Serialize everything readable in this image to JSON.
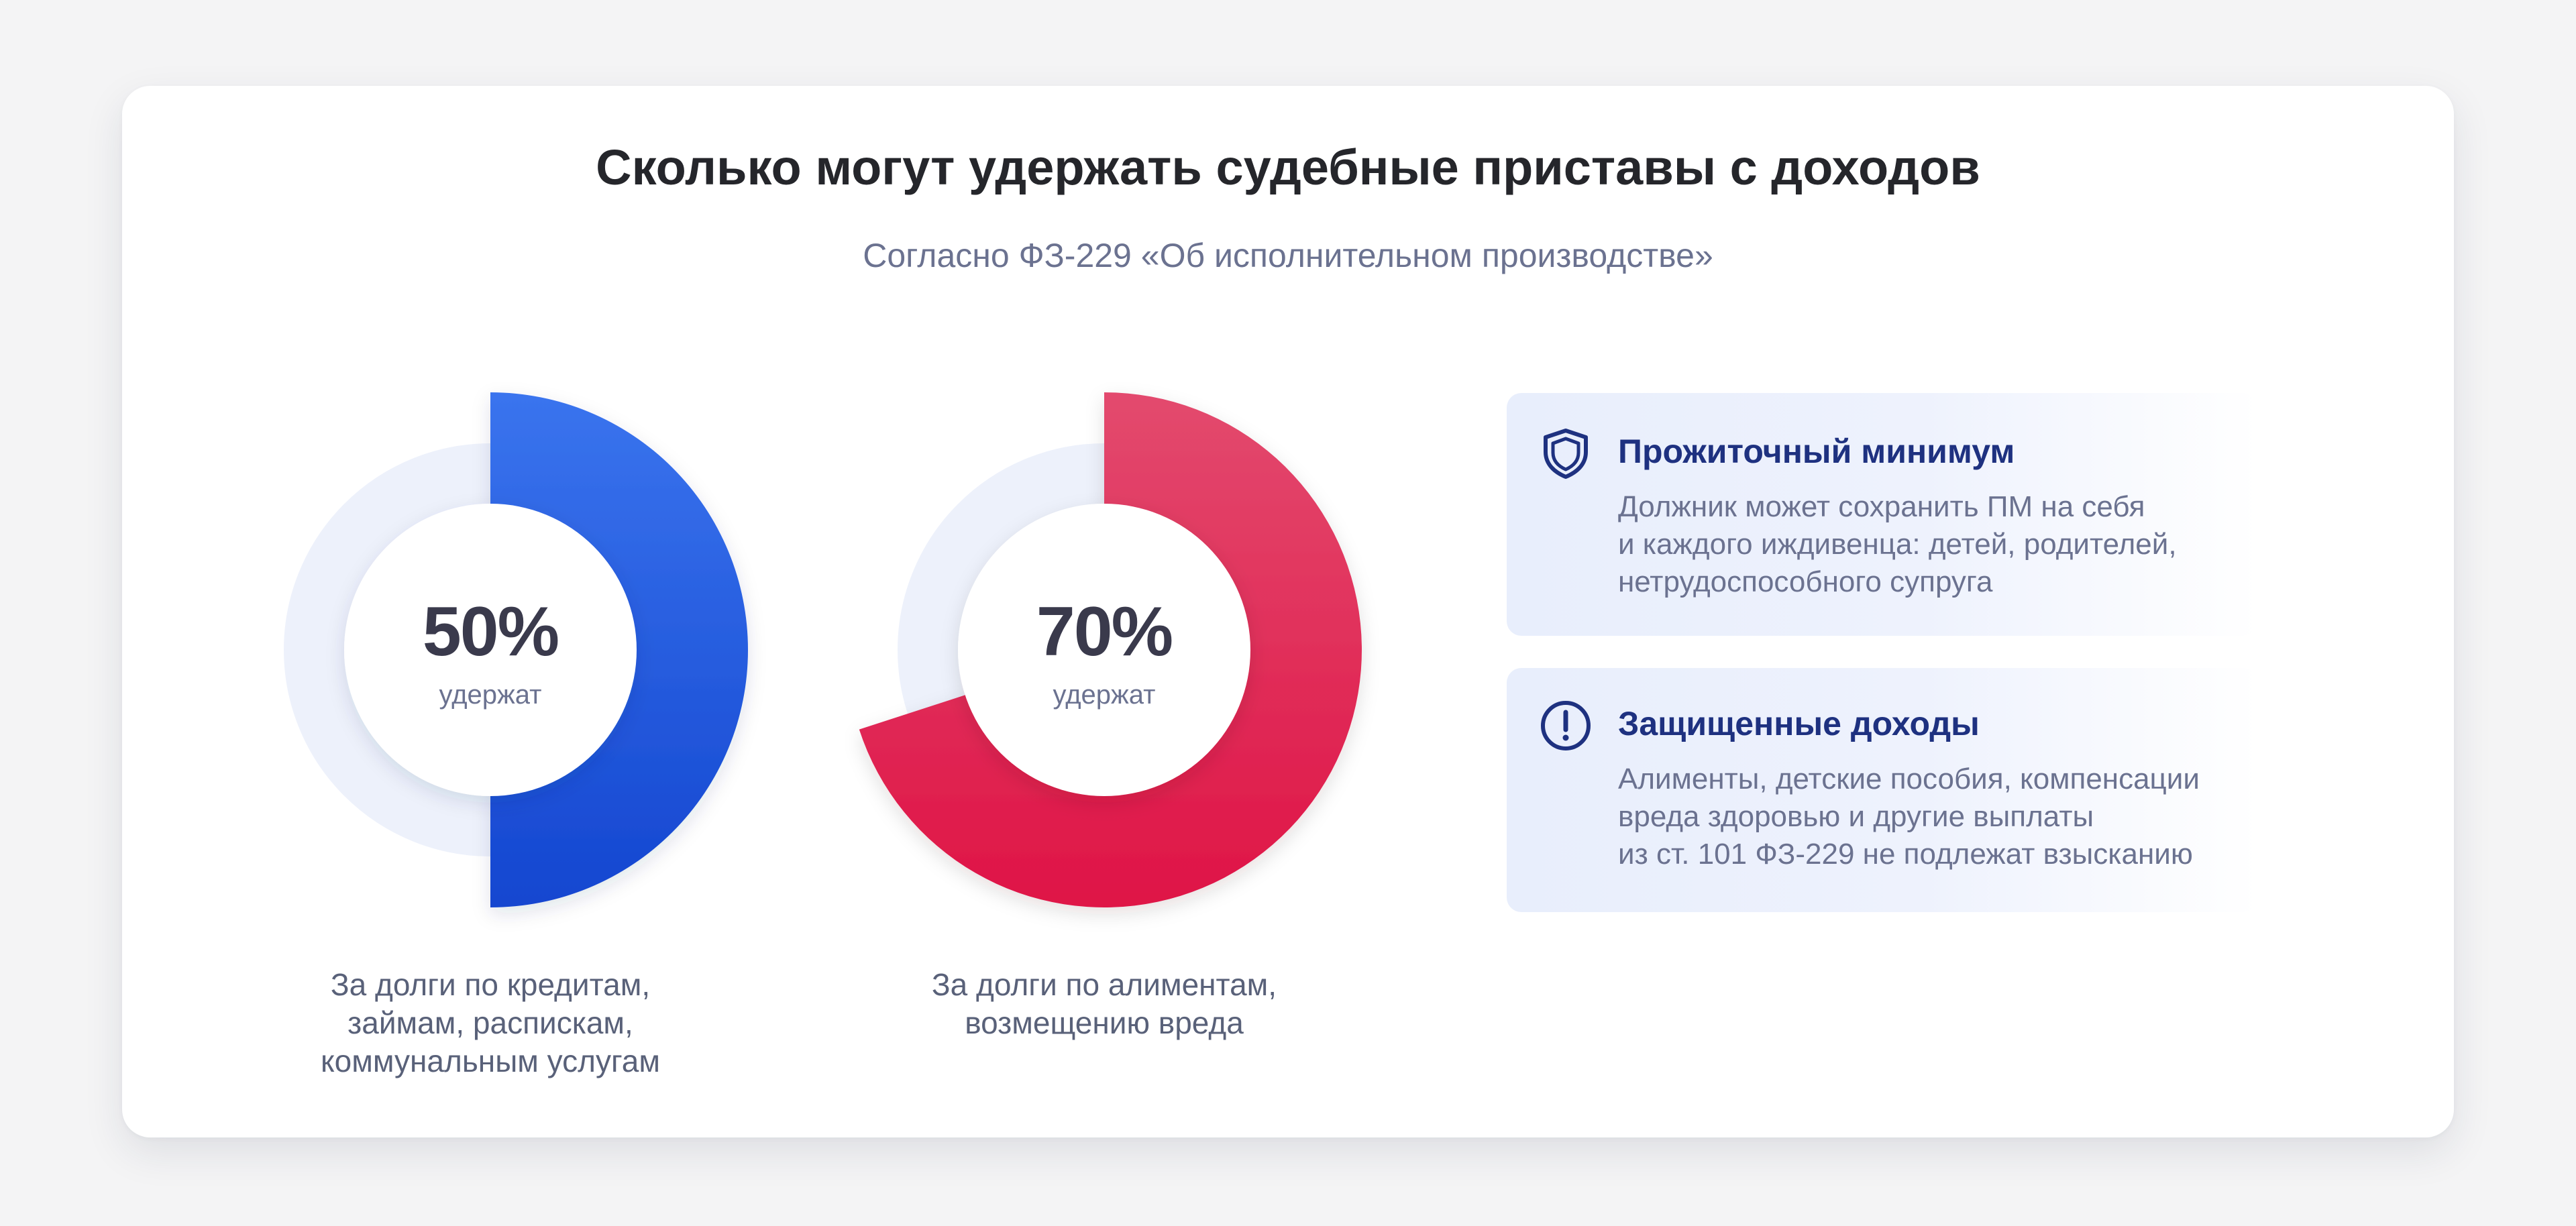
{
  "title": "Сколько могут удержать судебные приставы с доходов",
  "subtitle": "Согласно ФЗ-229 «Об исполнительном производстве»",
  "chart_data": [
    {
      "type": "pie",
      "values": [
        50
      ],
      "value_label": "50%",
      "sub_label": "удержат",
      "caption_lines": [
        "За долги по кредитам,",
        "займам, распискам,",
        "коммунальным услугам"
      ],
      "color_top": "#3a74ee",
      "color_bottom": "#1446d0"
    },
    {
      "type": "pie",
      "values": [
        70
      ],
      "value_label": "70%",
      "sub_label": "удержат",
      "caption_lines": [
        "За долги по алиментам,",
        "возмещению вреда"
      ],
      "color_top": "#e34a6e",
      "color_bottom": "#df1446"
    }
  ],
  "track_color": "#edf1fb",
  "info_boxes": [
    {
      "icon": "shield-icon",
      "title": "Прожиточный минимум",
      "lines": [
        "Должник может сохранить ПМ на себя",
        "и каждого иждивенца: детей, родителей,",
        "нетрудоспособного супруга"
      ]
    },
    {
      "icon": "exclamation-circle-icon",
      "title": "Защищенные доходы",
      "lines": [
        "Алименты, детские пособия, компенсации",
        "вреда здоровью и другие выплаты",
        "из ст. 101 ФЗ-229 не подлежат взысканию"
      ]
    }
  ],
  "colors": {
    "icon": "#1e3180",
    "title": "#25262b",
    "muted_text": "#6b7290"
  }
}
